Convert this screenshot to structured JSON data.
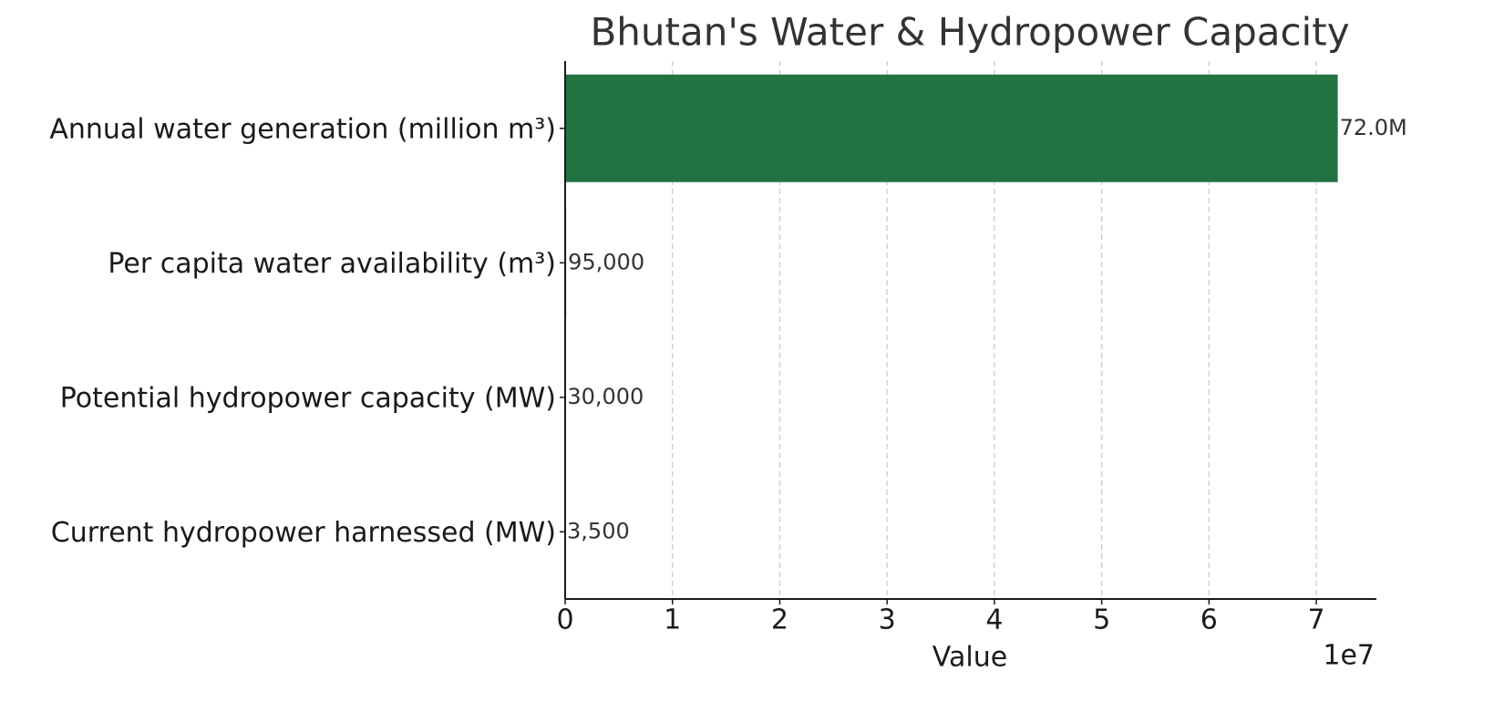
{
  "chart_data": {
    "type": "barh",
    "title": "Bhutan's Water & Hydropower Capacity",
    "categories": [
      "Annual water generation (million m³)",
      "Per capita water availability (m³)",
      "Potential hydropower capacity (MW)",
      "Current hydropower harnessed (MW)"
    ],
    "values": [
      72000000,
      95000,
      30000,
      3500
    ],
    "value_labels": [
      "72.0M",
      "95,000",
      "30,000",
      "3,500"
    ],
    "color": "#217442",
    "xlabel": "Value",
    "x_offset_label": "1e7",
    "xlim": [
      0,
      75600000
    ],
    "xticks": [
      0,
      {
        "value": 10000000,
        "label": "1"
      },
      {
        "value": 20000000,
        "label": "2"
      },
      {
        "value": 30000000,
        "label": "3"
      },
      {
        "value": 40000000,
        "label": "4"
      },
      {
        "value": 50000000,
        "label": "5"
      },
      {
        "value": 60000000,
        "label": "6"
      },
      {
        "value": 70000000,
        "label": "7"
      }
    ],
    "grid": true
  }
}
